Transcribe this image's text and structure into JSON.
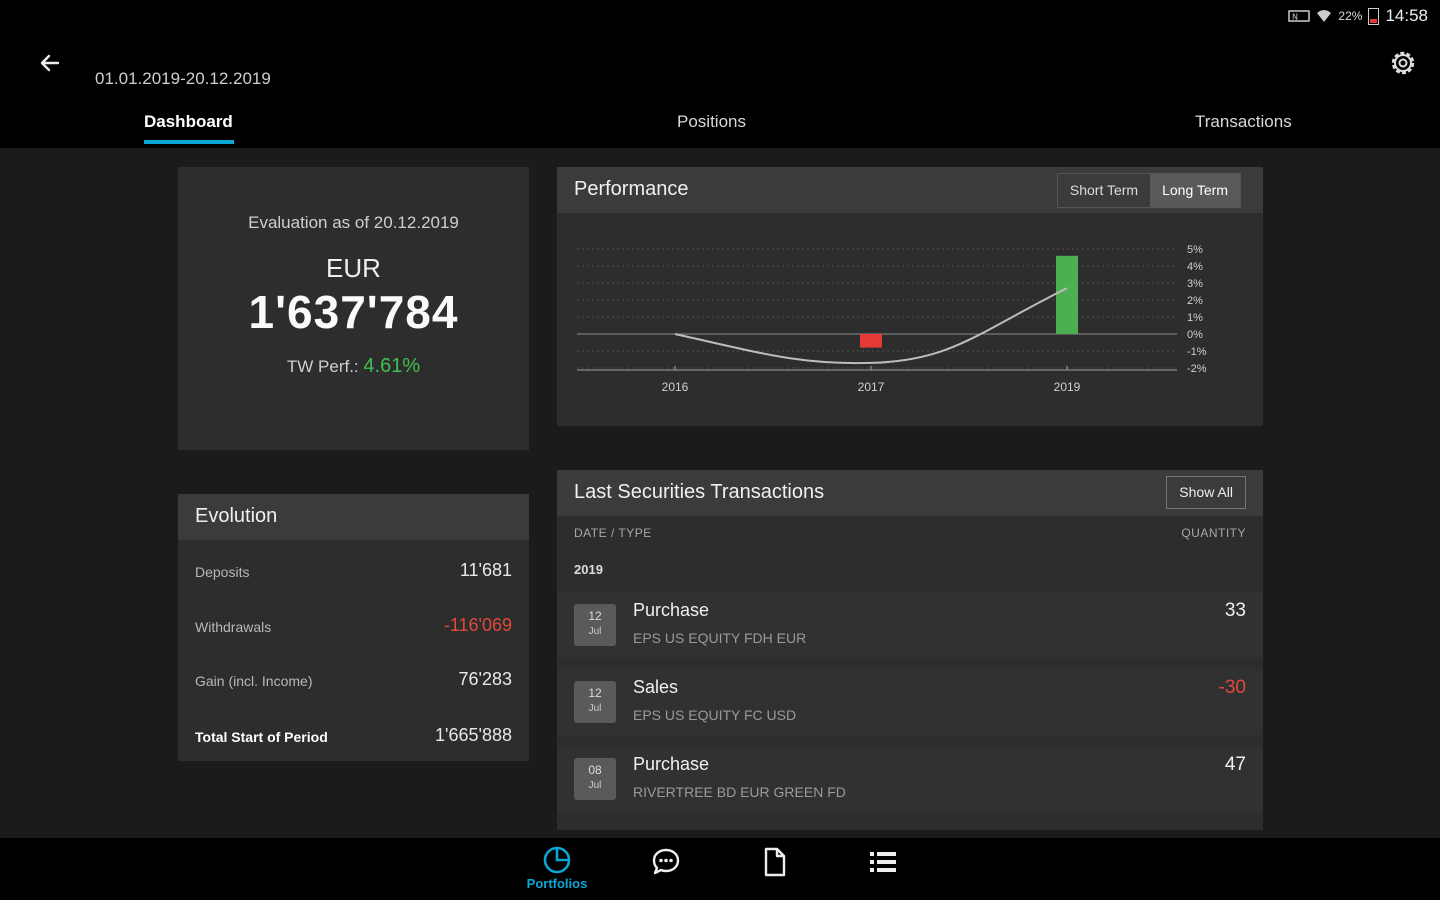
{
  "status": {
    "time": "14:58",
    "battery": "22%"
  },
  "header": {
    "date_range": "01.01.2019-20.12.2019"
  },
  "tabs": [
    {
      "label": "Dashboard",
      "active": true
    },
    {
      "label": "Positions",
      "active": false
    },
    {
      "label": "Transactions",
      "active": false
    }
  ],
  "evaluation": {
    "label": "Evaluation as of 20.12.2019",
    "currency": "EUR",
    "amount": "1'637'784",
    "perf_label": "TW Perf.:",
    "perf_value": "4.61%"
  },
  "performance": {
    "title": "Performance",
    "short_term": "Short Term",
    "long_term": "Long Term"
  },
  "chart_data": {
    "type": "bar",
    "categories": [
      "2016",
      "2017",
      "2019"
    ],
    "values": [
      null,
      -0.8,
      4.6
    ],
    "line": [
      0.0,
      -1.7,
      2.7
    ],
    "y_ticks": [
      "5%",
      "4%",
      "3%",
      "2%",
      "1%",
      "0%",
      "-1%",
      "-2%"
    ],
    "ylim": [
      -2,
      5
    ],
    "colors": {
      "positive": "#4caf50",
      "negative": "#e53935",
      "line": "#bdbdbd"
    }
  },
  "evolution": {
    "title": "Evolution",
    "rows": [
      {
        "label": "Deposits",
        "value": "11'681",
        "negative": false
      },
      {
        "label": "Withdrawals",
        "value": "-116'069",
        "negative": true
      },
      {
        "label": "Gain (incl. Income)",
        "value": "76'283",
        "negative": false
      },
      {
        "label": "Total Start of Period",
        "value": "1'665'888",
        "negative": false
      }
    ]
  },
  "transactions": {
    "title": "Last Securities Transactions",
    "show_all": "Show All",
    "col_date_type": "DATE / TYPE",
    "col_quantity": "QUANTITY",
    "year": "2019",
    "rows": [
      {
        "day": "12",
        "month": "Jul",
        "type": "Purchase",
        "name": "EPS US EQUITY FDH EUR",
        "qty": "33"
      },
      {
        "day": "12",
        "month": "Jul",
        "type": "Sales",
        "name": "EPS US EQUITY FC USD",
        "qty": "-30"
      },
      {
        "day": "08",
        "month": "Jul",
        "type": "Purchase",
        "name": "RIVERTREE BD EUR GREEN FD",
        "qty": "47"
      }
    ]
  },
  "bottom_nav": {
    "portfolios_label": "Portfolios"
  },
  "accent_color": "#0aa6d6"
}
